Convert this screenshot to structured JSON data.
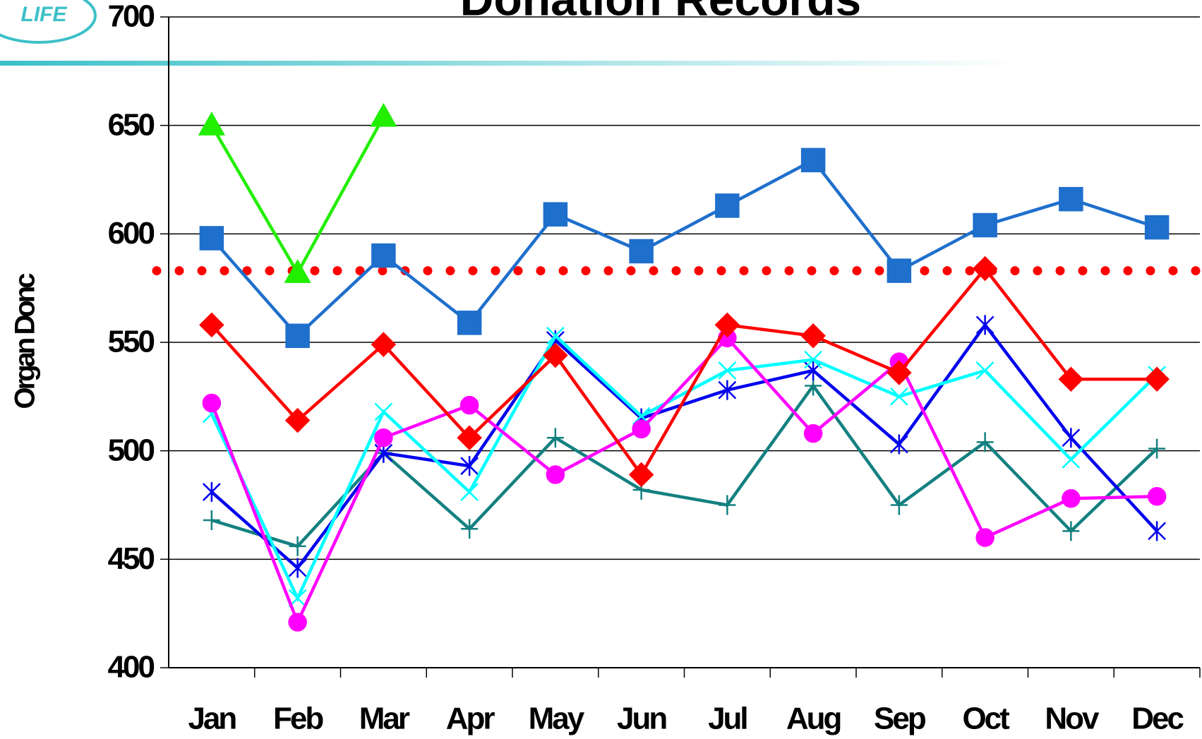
{
  "logo": "LIFE",
  "chart_data": {
    "type": "line",
    "title": "Donation Records",
    "y_label": "Organ Donc",
    "categories": [
      "Jan",
      "Feb",
      "Mar",
      "Apr",
      "May",
      "Jun",
      "Jul",
      "Aug",
      "Sep",
      "Oct",
      "Nov",
      "Dec"
    ],
    "series": [
      {
        "color": "#1f6fcc",
        "marker": "square",
        "values": [
          598,
          553,
          590,
          559,
          609,
          592,
          613,
          634,
          583,
          604,
          616,
          603
        ]
      },
      {
        "color": "#22ee00",
        "marker": "triangle",
        "values": [
          650,
          582,
          654,
          null,
          null,
          null,
          null,
          null,
          null,
          null,
          null,
          null
        ]
      },
      {
        "color": "#ff0000",
        "marker": "diamond",
        "values": [
          558,
          514,
          549,
          506,
          544,
          489,
          558,
          553,
          536,
          584,
          533,
          533
        ]
      },
      {
        "color": "#ff00ff",
        "marker": "circle",
        "values": [
          522,
          421,
          506,
          521,
          489,
          510,
          552,
          508,
          541,
          460,
          478,
          479
        ]
      },
      {
        "color": "#00ffff",
        "marker": "x",
        "values": [
          517,
          432,
          518,
          481,
          553,
          516,
          537,
          542,
          525,
          537,
          496,
          535
        ]
      },
      {
        "color": "#0000ee",
        "marker": "star",
        "values": [
          481,
          446,
          499,
          493,
          551,
          515,
          528,
          537,
          503,
          558,
          506,
          463
        ]
      },
      {
        "color": "#138080",
        "marker": "plus",
        "values": [
          468,
          456,
          499,
          464,
          506,
          482,
          475,
          530,
          475,
          504,
          463,
          501
        ]
      }
    ],
    "reference_line": {
      "value": 583,
      "color": "#ff0000"
    },
    "ylim": [
      400,
      700
    ],
    "yticks": [
      400,
      450,
      500,
      550,
      600,
      650,
      700
    ],
    "grid": true
  }
}
